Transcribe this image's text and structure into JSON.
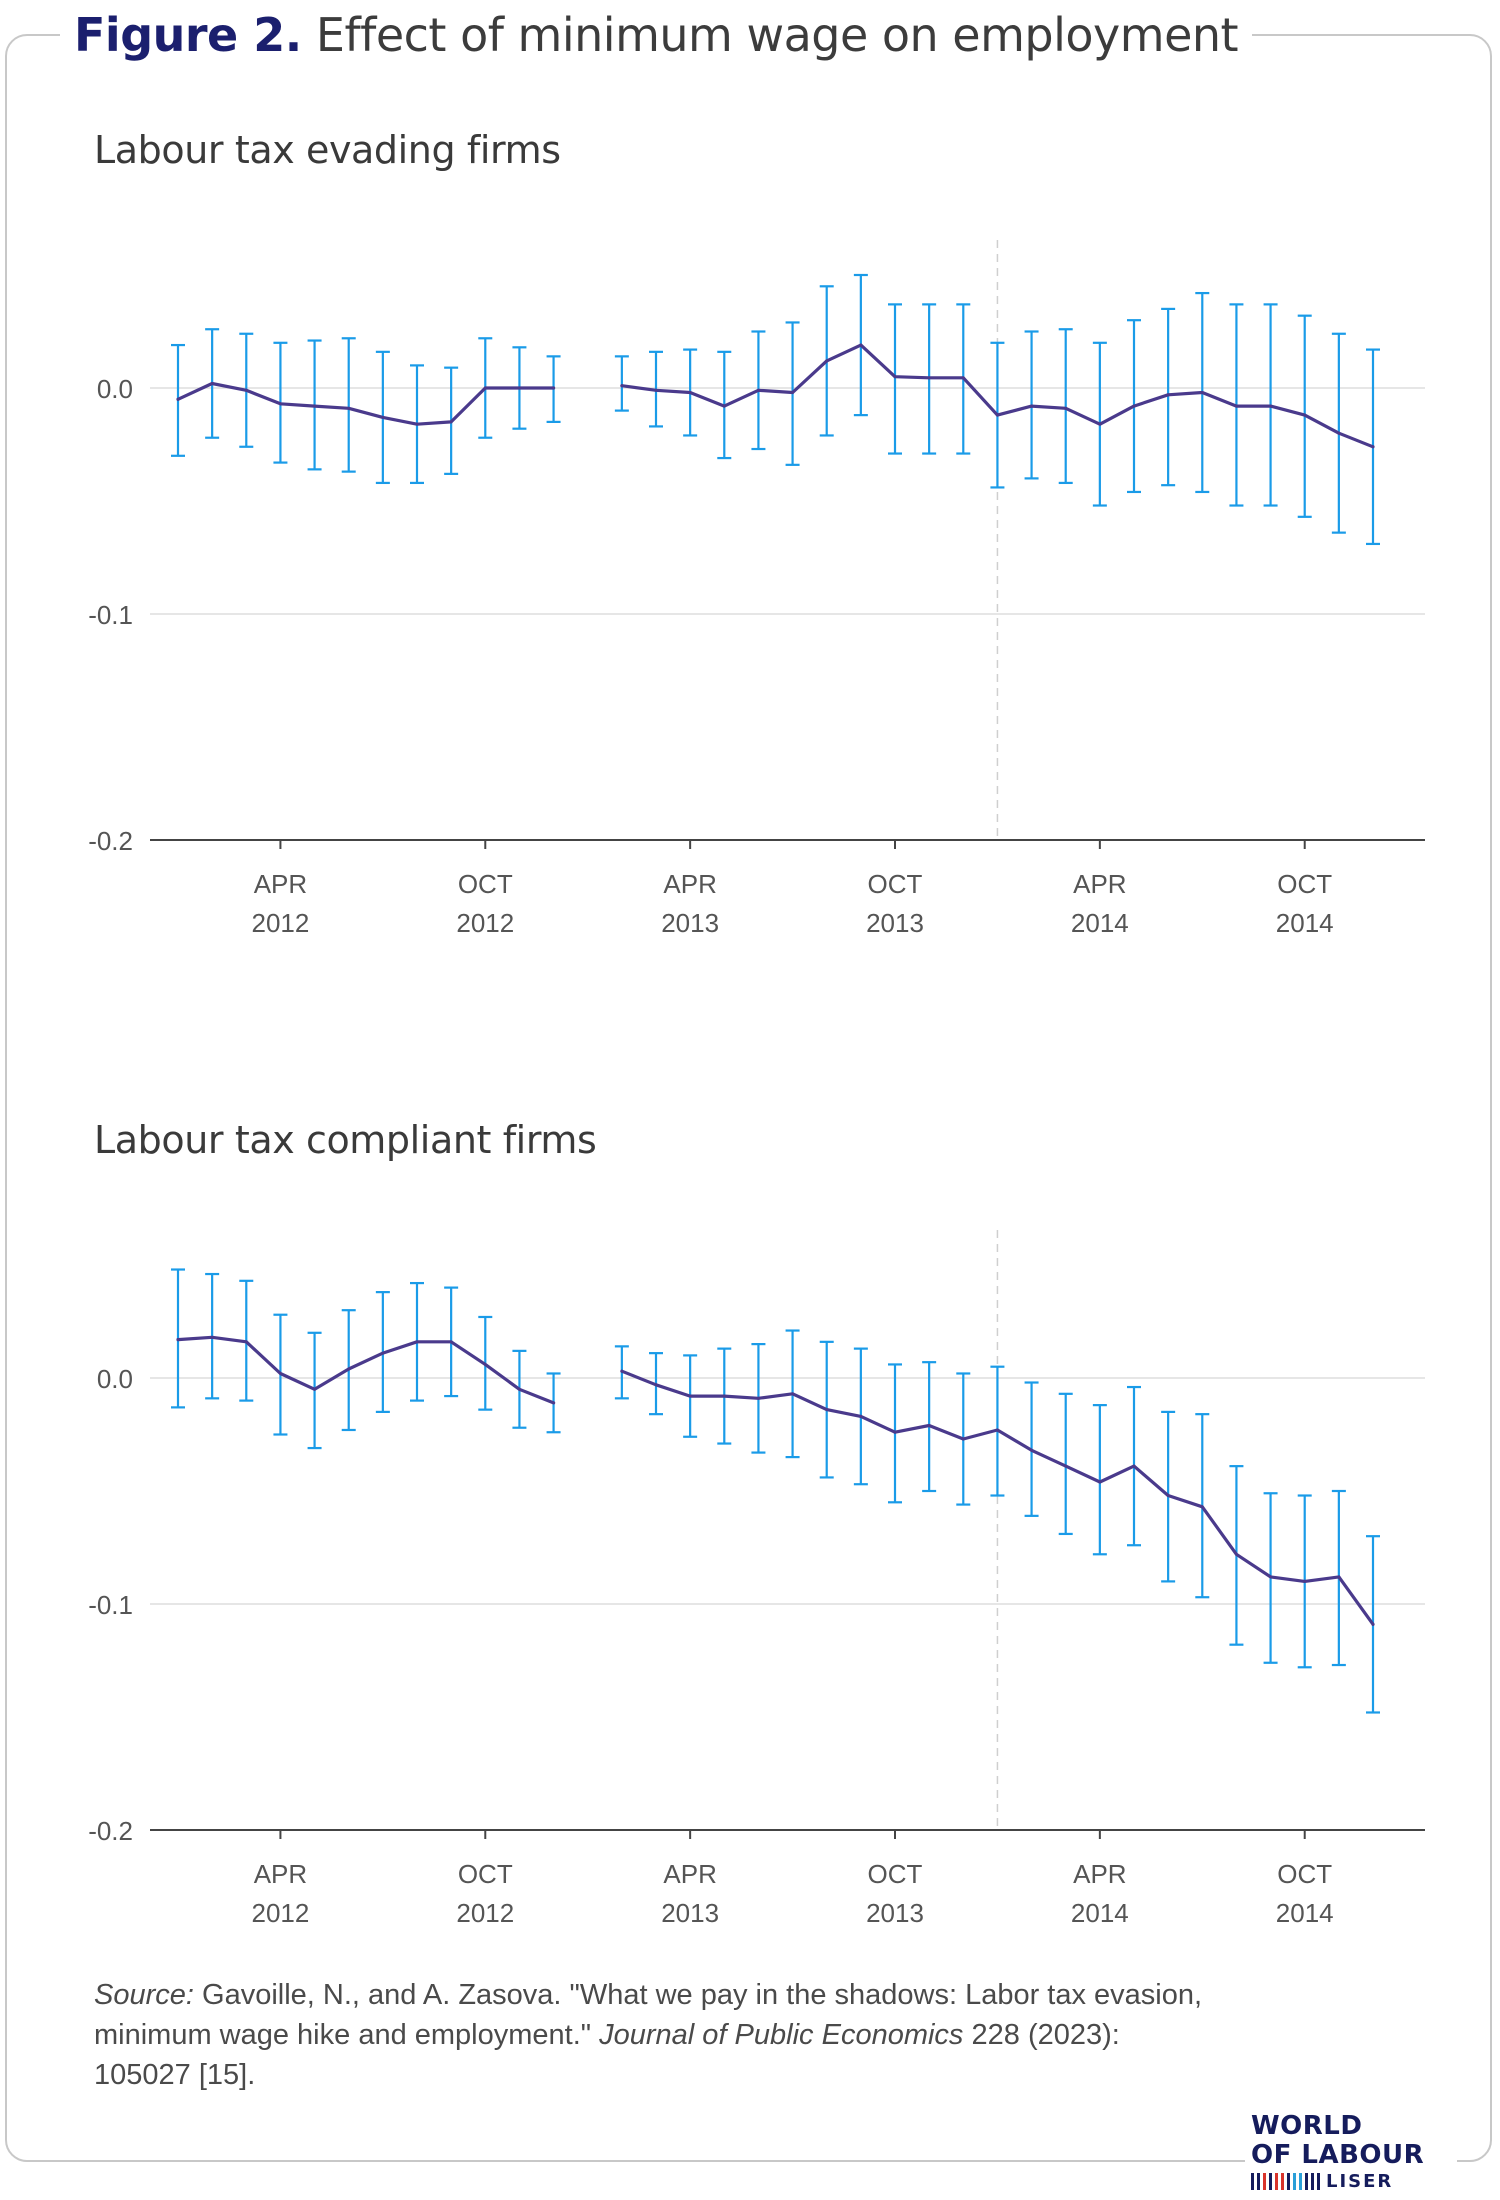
{
  "figure": {
    "number": "Figure 2.",
    "title": "Effect of minimum wage on employment"
  },
  "colors": {
    "line": "#4a3a8c",
    "errorbar": "#1a9be8",
    "grid": "#dedede",
    "axis": "#444444"
  },
  "chart_data": [
    {
      "type": "line",
      "title": "Labour tax evading firms",
      "ylim": [
        -0.2,
        0.05
      ],
      "yticks": [
        0.0,
        -0.1,
        -0.2
      ],
      "ytick_labels": [
        "0.0",
        "-0.1",
        "-0.2"
      ],
      "xlim": [
        0,
        36
      ],
      "xticks": [
        3,
        9,
        15,
        21,
        27,
        33
      ],
      "xtick_labels": [
        [
          "APR",
          "2012"
        ],
        [
          "OCT",
          "2012"
        ],
        [
          "APR",
          "2013"
        ],
        [
          "OCT",
          "2013"
        ],
        [
          "APR",
          "2014"
        ],
        [
          "OCT",
          "2014"
        ]
      ],
      "reference_x": 24,
      "x": [
        0,
        1,
        2,
        3,
        4,
        5,
        6,
        7,
        8,
        9,
        10,
        11,
        13,
        14,
        15,
        16,
        17,
        18,
        19,
        20,
        21,
        22,
        23,
        24,
        25,
        26,
        27,
        28,
        29,
        30,
        31,
        32,
        33,
        34,
        35
      ],
      "y": [
        -0.005,
        0.002,
        -0.001,
        -0.007,
        -0.008,
        -0.009,
        -0.013,
        -0.016,
        -0.015,
        0.0,
        0.0,
        0.0,
        0.001,
        -0.001,
        -0.002,
        -0.008,
        -0.001,
        -0.002,
        0.012,
        0.019,
        0.005,
        0.0045,
        0.0045,
        -0.012,
        -0.008,
        -0.009,
        -0.016,
        -0.008,
        -0.003,
        -0.002,
        -0.008,
        -0.008,
        -0.012,
        -0.02,
        -0.026
      ],
      "upper": [
        0.019,
        0.026,
        0.024,
        0.02,
        0.021,
        0.022,
        0.016,
        0.01,
        0.009,
        0.022,
        0.018,
        0.014,
        0.014,
        0.016,
        0.017,
        0.016,
        0.025,
        0.029,
        0.045,
        0.05,
        0.037,
        0.037,
        0.037,
        0.02,
        0.025,
        0.026,
        0.02,
        0.03,
        0.035,
        0.042,
        0.037,
        0.037,
        0.032,
        0.024,
        0.017
      ],
      "lower": [
        -0.03,
        -0.022,
        -0.026,
        -0.033,
        -0.036,
        -0.037,
        -0.042,
        -0.042,
        -0.038,
        -0.022,
        -0.018,
        -0.015,
        -0.01,
        -0.017,
        -0.021,
        -0.031,
        -0.027,
        -0.034,
        -0.021,
        -0.012,
        -0.029,
        -0.029,
        -0.029,
        -0.044,
        -0.04,
        -0.042,
        -0.052,
        -0.046,
        -0.043,
        -0.046,
        -0.052,
        -0.052,
        -0.057,
        -0.064,
        -0.069
      ]
    },
    {
      "type": "line",
      "title": "Labour tax compliant firms",
      "ylim": [
        -0.2,
        0.05
      ],
      "yticks": [
        0.0,
        -0.1,
        -0.2
      ],
      "ytick_labels": [
        "0.0",
        "-0.1",
        "-0.2"
      ],
      "xlim": [
        0,
        36
      ],
      "xticks": [
        3,
        9,
        15,
        21,
        27,
        33
      ],
      "xtick_labels": [
        [
          "APR",
          "2012"
        ],
        [
          "OCT",
          "2012"
        ],
        [
          "APR",
          "2013"
        ],
        [
          "OCT",
          "2013"
        ],
        [
          "APR",
          "2014"
        ],
        [
          "OCT",
          "2014"
        ]
      ],
      "reference_x": 24,
      "x": [
        0,
        1,
        2,
        3,
        4,
        5,
        6,
        7,
        8,
        9,
        10,
        11,
        13,
        14,
        15,
        16,
        17,
        18,
        19,
        20,
        21,
        22,
        23,
        24,
        25,
        26,
        27,
        28,
        29,
        30,
        31,
        32,
        33,
        34,
        35
      ],
      "y": [
        0.017,
        0.018,
        0.016,
        0.002,
        -0.005,
        0.004,
        0.011,
        0.016,
        0.016,
        0.006,
        -0.005,
        -0.011,
        0.003,
        -0.003,
        -0.008,
        -0.008,
        -0.009,
        -0.007,
        -0.014,
        -0.017,
        -0.024,
        -0.021,
        -0.027,
        -0.023,
        -0.032,
        -0.039,
        -0.046,
        -0.039,
        -0.052,
        -0.057,
        -0.078,
        -0.088,
        -0.09,
        -0.088,
        -0.109
      ],
      "upper": [
        0.048,
        0.046,
        0.043,
        0.028,
        0.02,
        0.03,
        0.038,
        0.042,
        0.04,
        0.027,
        0.012,
        0.002,
        0.014,
        0.011,
        0.01,
        0.013,
        0.015,
        0.021,
        0.016,
        0.013,
        0.006,
        0.007,
        0.002,
        0.005,
        -0.002,
        -0.007,
        -0.012,
        -0.004,
        -0.015,
        -0.016,
        -0.039,
        -0.051,
        -0.052,
        -0.05,
        -0.07
      ],
      "lower": [
        -0.013,
        -0.009,
        -0.01,
        -0.025,
        -0.031,
        -0.023,
        -0.015,
        -0.01,
        -0.008,
        -0.014,
        -0.022,
        -0.024,
        -0.009,
        -0.016,
        -0.026,
        -0.029,
        -0.033,
        -0.035,
        -0.044,
        -0.047,
        -0.055,
        -0.05,
        -0.056,
        -0.052,
        -0.061,
        -0.069,
        -0.078,
        -0.074,
        -0.09,
        -0.097,
        -0.118,
        -0.126,
        -0.128,
        -0.127,
        -0.148
      ]
    }
  ],
  "source": {
    "label": "Source:",
    "text": "Gavoille, N., and A. Zasova. \"What we pay in the shadows: Labor tax evasion, minimum wage hike and employment.\"",
    "journal": "Journal of Public Economics",
    "citation": "228 (2023): 105027 [15]."
  },
  "logo": {
    "line1": "WORLD",
    "line2": "OF LABOUR",
    "line3": "LISER"
  }
}
